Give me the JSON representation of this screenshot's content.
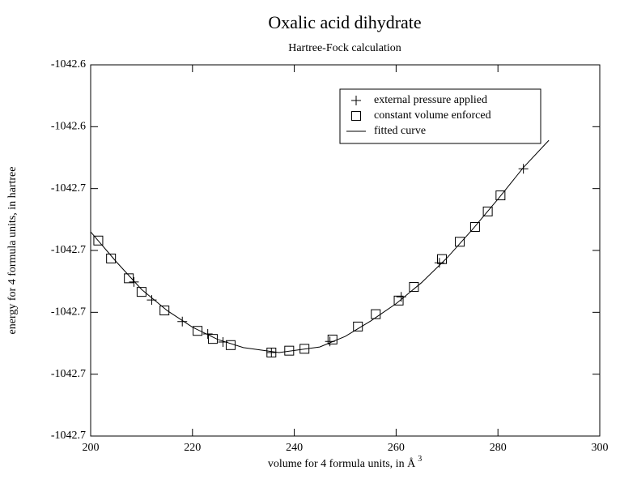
{
  "chart_data": {
    "type": "scatter",
    "title": "Oxalic acid dihydrate",
    "subtitle": "Hartree-Fock calculation",
    "x_label": "volume for 4 formula units, in Å",
    "x_label_superscript": "3",
    "y_label": "energy for 4 formula units, in hartree",
    "xlim": [
      200,
      300
    ],
    "xticks": [
      200,
      220,
      240,
      260,
      280,
      300
    ],
    "ylim": [
      -1042.7,
      -1042.64
    ],
    "yticks": [
      {
        "value": -1042.64,
        "label": "-1042.6"
      },
      {
        "value": -1042.65,
        "label": "-1042.6"
      },
      {
        "value": -1042.66,
        "label": "-1042.7"
      },
      {
        "value": -1042.67,
        "label": "-1042.7"
      },
      {
        "value": -1042.68,
        "label": "-1042.7"
      },
      {
        "value": -1042.69,
        "label": "-1042.7"
      },
      {
        "value": -1042.7,
        "label": "-1042.7"
      }
    ],
    "legend": "upper right",
    "series": [
      {
        "name": "external pressure applied",
        "marker": "plus",
        "color": "#000000",
        "x": [
          208.5,
          212,
          218,
          223,
          226,
          235.5,
          247,
          261,
          268.5,
          285
        ],
        "values": [
          -1042.6751,
          -1042.678,
          -1042.6815,
          -1042.6835,
          -1042.6848,
          -1042.6865,
          -1042.6847,
          -1042.6775,
          -1042.672,
          -1042.6568
        ]
      },
      {
        "name": "constant volume enforced",
        "marker": "square",
        "color": "#000000",
        "x": [
          201.5,
          204,
          207.5,
          210,
          214.5,
          221,
          224,
          227.5,
          235.5,
          239,
          242,
          247.5,
          252.5,
          256,
          260.5,
          263.5,
          269,
          272.5,
          275.5,
          278,
          280.5
        ],
        "values": [
          -1042.6684,
          -1042.6713,
          -1042.6745,
          -1042.6767,
          -1042.6797,
          -1042.683,
          -1042.6843,
          -1042.6853,
          -1042.6865,
          -1042.6862,
          -1042.6859,
          -1042.6844,
          -1042.6823,
          -1042.6803,
          -1042.6781,
          -1042.6759,
          -1042.6714,
          -1042.6686,
          -1042.6662,
          -1042.6637,
          -1042.6611
        ]
      },
      {
        "name": "fitted curve",
        "marker": "line",
        "color": "#000000",
        "x": [
          200,
          205,
          210,
          215,
          220,
          225,
          230,
          237,
          245,
          250,
          255,
          260,
          265,
          270,
          275,
          280,
          285,
          290
        ],
        "values": [
          -1042.667,
          -1042.6718,
          -1042.6763,
          -1042.6797,
          -1042.6824,
          -1042.6844,
          -1042.6857,
          -1042.6865,
          -1042.6856,
          -1042.6839,
          -1042.6814,
          -1042.6786,
          -1042.6752,
          -1042.6712,
          -1042.6666,
          -1042.6617,
          -1042.6566,
          -1042.6522
        ]
      }
    ]
  }
}
